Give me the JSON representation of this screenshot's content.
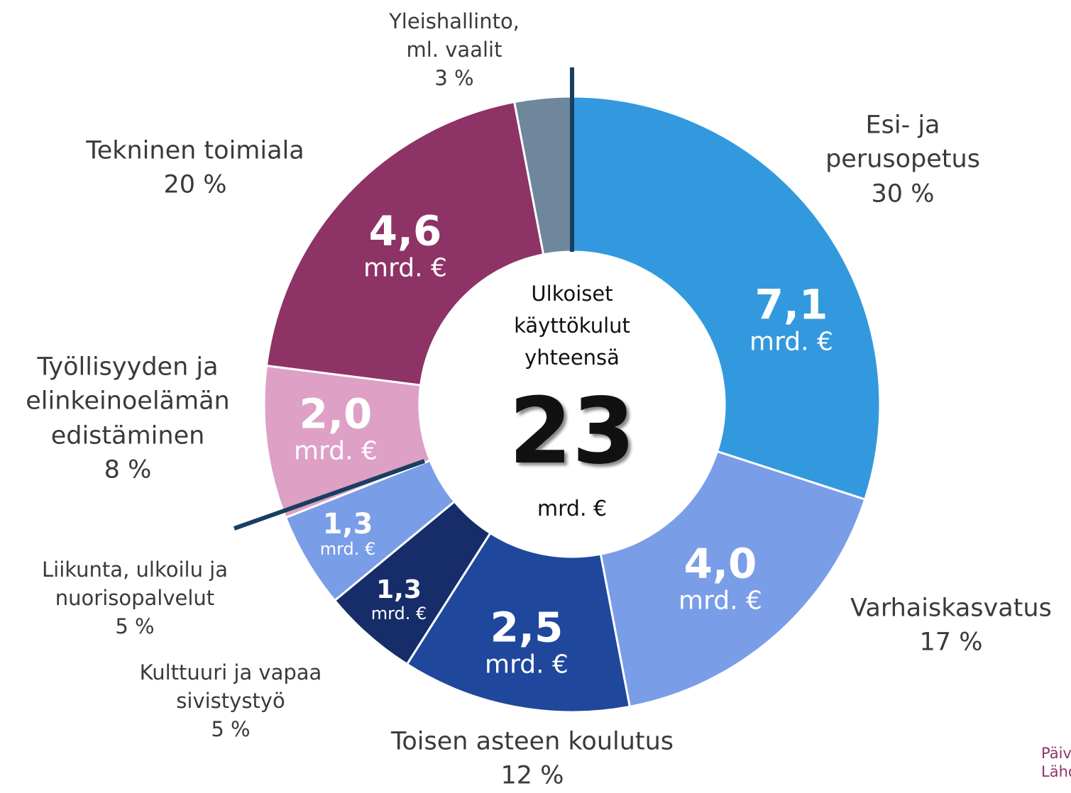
{
  "chart_data": {
    "type": "donut",
    "categories": [
      "Esi- ja\nperusopetus",
      "Varhaiskasvatus",
      "Toisen asteen koulutus",
      "Kulttuuri ja vapaa\nsivistystyö",
      "Liikunta, ulkoilu ja\nnuorisopalvelut",
      "Työllisyyden ja\nelinkeinoelämän\nedistäminen",
      "Tekninen toimiala",
      "Yleishallinto,\nml. vaalit"
    ],
    "values": [
      30,
      17,
      12,
      5,
      5,
      8,
      20,
      3
    ],
    "value_labels": [
      "30 %",
      "17 %",
      "12 %",
      "5 %",
      "5 %",
      "8 %",
      "20 %",
      "3 %"
    ],
    "amount_labels": [
      "7,1",
      "4,0",
      "2,5",
      "1,3",
      "1,3",
      "2,0",
      "4,6",
      null
    ],
    "unit": "mrd. €",
    "colors": [
      "#3399de",
      "#7a9de8",
      "#1f479c",
      "#172d69",
      "#7a9de8",
      "#dea0c5",
      "#8e3366",
      "#6f879d"
    ],
    "center_text": "Ulkoiset\nkäyttökulut\nyhteensä",
    "total": 23,
    "notes": [
      "Päivit",
      "Lähde"
    ]
  }
}
